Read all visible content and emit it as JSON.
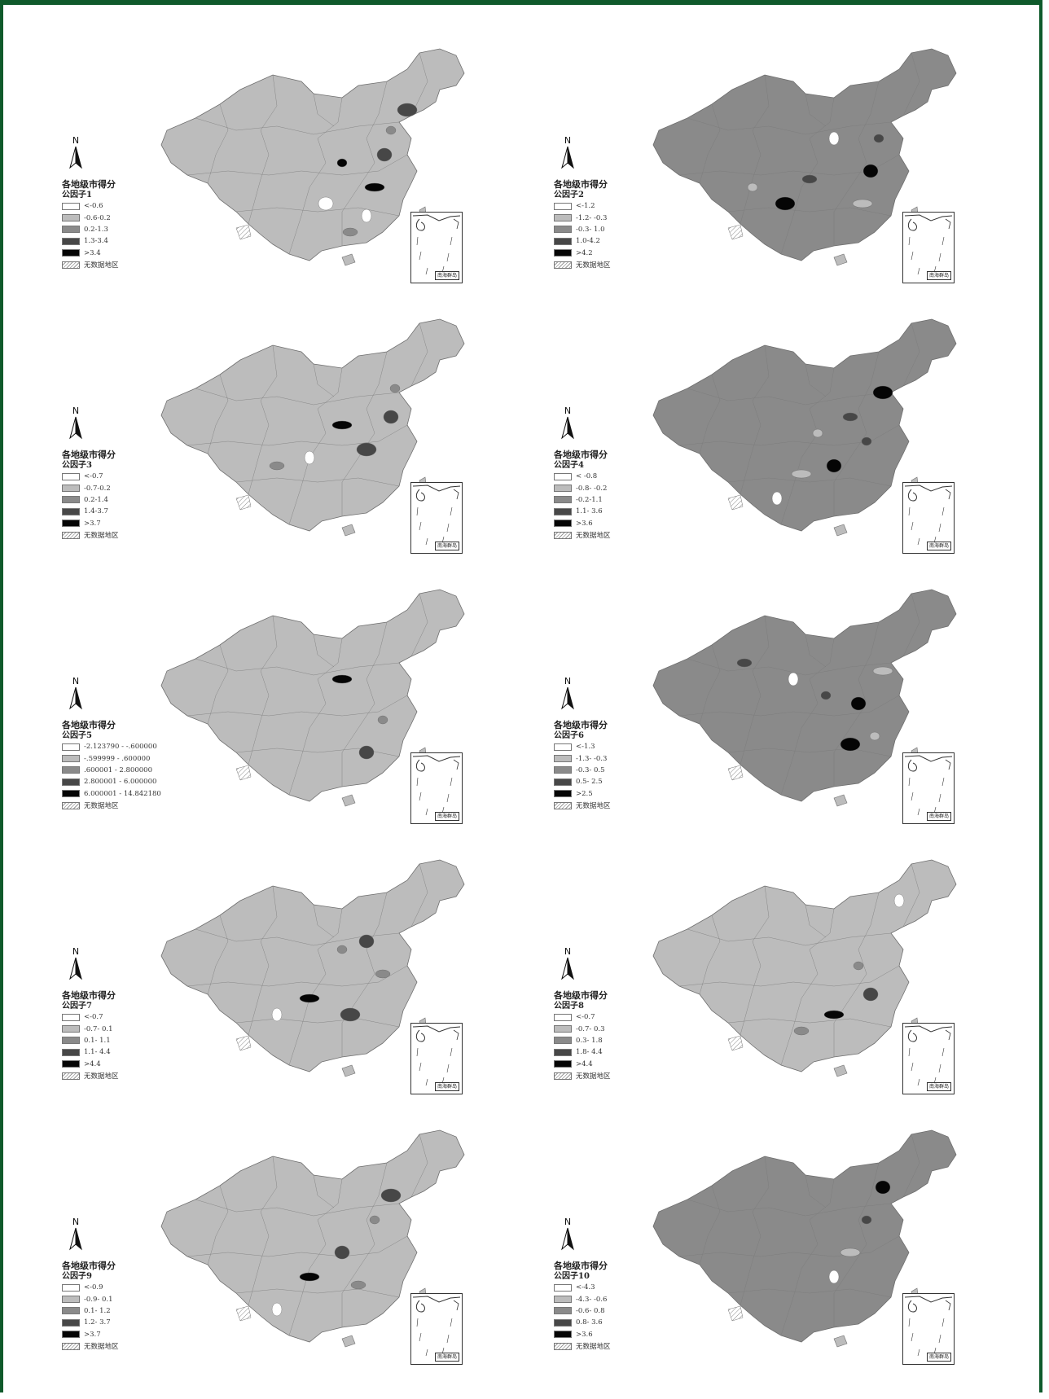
{
  "panels": [
    {
      "factor": "公因子1",
      "legend": [
        "<-0.6",
        "-0.6-0.2",
        "0.2-1.3",
        "1.3-3.4",
        ">3.4"
      ],
      "base": "light"
    },
    {
      "factor": "公因子2",
      "legend": [
        "<-1.2",
        "-1.2- -0.3",
        "-0.3- 1.0",
        "1.0-4.2",
        ">4.2"
      ],
      "base": "mid"
    },
    {
      "factor": "公因子3",
      "legend": [
        "<-0.7",
        "-0.7-0.2",
        "0.2-1.4",
        "1.4-3.7",
        ">3.7"
      ],
      "base": "light"
    },
    {
      "factor": "公因子4",
      "legend": [
        "< -0.8",
        "-0.8- -0.2",
        "-0.2-1.1",
        "1.1- 3.6",
        ">3.6"
      ],
      "base": "mid"
    },
    {
      "factor": "公因子5",
      "legend": [
        "-2.123790 - -.600000",
        "-.599999 - .600000",
        ".600001 - 2.800000",
        "2.800001 - 6.000000",
        "6.000001 - 14.842180"
      ],
      "base": "light"
    },
    {
      "factor": "公因子6",
      "legend": [
        "<-1.3",
        "-1.3- -0.3",
        "-0.3- 0.5",
        "0.5- 2.5",
        ">2.5"
      ],
      "base": "mid"
    },
    {
      "factor": "公因子7",
      "legend": [
        "<-0.7",
        "-0.7- 0.1",
        "0.1- 1.1",
        "1.1- 4.4",
        ">4.4"
      ],
      "base": "light"
    },
    {
      "factor": "公因子8",
      "legend": [
        "<-0.7",
        "-0.7- 0.3",
        "0.3- 1.8",
        "1.8- 4.4",
        ">4.4"
      ],
      "base": "light"
    },
    {
      "factor": "公因子9",
      "legend": [
        "<-0.9",
        "-0.9- 0.1",
        "0.1- 1.2",
        "1.2- 3.7",
        ">3.7"
      ],
      "base": "light"
    },
    {
      "factor": "公因子10",
      "legend": [
        "<-4.3",
        "-4.3- -0.6",
        "-0.6- 0.8",
        "0.8- 3.6",
        ">3.6"
      ],
      "base": "mid"
    }
  ],
  "legend_title": "各地级市得分",
  "no_data_label": "无数据地区",
  "north_label": "N",
  "inset_label": "南海群岛",
  "colors": {
    "white": "#ffffff",
    "light": "#bcbcbc",
    "mid": "#8a8a8a",
    "dark": "#474747",
    "black": "#050505",
    "frame": "#0f5a2b"
  }
}
